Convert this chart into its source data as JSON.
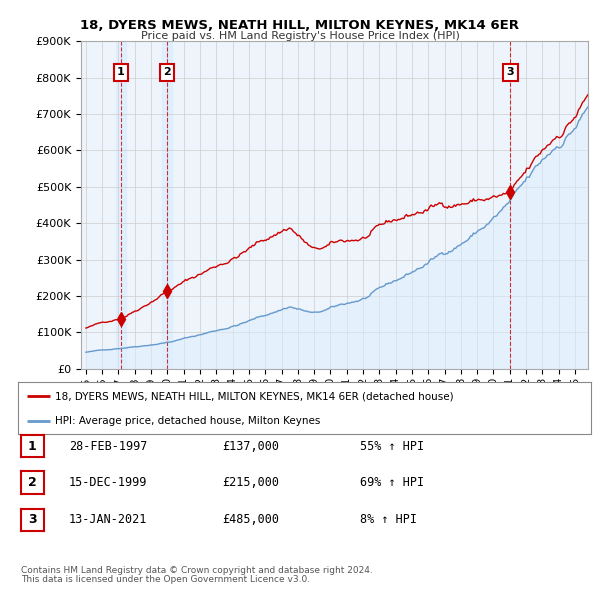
{
  "title": "18, DYERS MEWS, NEATH HILL, MILTON KEYNES, MK14 6ER",
  "subtitle": "Price paid vs. HM Land Registry's House Price Index (HPI)",
  "ylim": [
    0,
    900000
  ],
  "yticks": [
    0,
    100000,
    200000,
    300000,
    400000,
    500000,
    600000,
    700000,
    800000,
    900000
  ],
  "ytick_labels": [
    "£0",
    "£100K",
    "£200K",
    "£300K",
    "£400K",
    "£500K",
    "£600K",
    "£700K",
    "£800K",
    "£900K"
  ],
  "sales": [
    {
      "date_num": 1997.15,
      "price": 137000,
      "label": "1"
    },
    {
      "date_num": 1999.96,
      "price": 215000,
      "label": "2"
    },
    {
      "date_num": 2021.04,
      "price": 485000,
      "label": "3"
    }
  ],
  "sale_color": "#cc0000",
  "hpi_color": "#6699cc",
  "hpi_bg_color": "#ddeeff",
  "legend_sale_label": "18, DYERS MEWS, NEATH HILL, MILTON KEYNES, MK14 6ER (detached house)",
  "legend_hpi_label": "HPI: Average price, detached house, Milton Keynes",
  "table_rows": [
    {
      "num": "1",
      "date": "28-FEB-1997",
      "price": "£137,000",
      "change": "55% ↑ HPI"
    },
    {
      "num": "2",
      "date": "15-DEC-1999",
      "price": "£215,000",
      "change": "69% ↑ HPI"
    },
    {
      "num": "3",
      "date": "13-JAN-2021",
      "price": "£485,000",
      "change": "8% ↑ HPI"
    }
  ],
  "footnote1": "Contains HM Land Registry data © Crown copyright and database right 2024.",
  "footnote2": "This data is licensed under the Open Government Licence v3.0.",
  "background_color": "#ffffff",
  "grid_color": "#cccccc",
  "xlim_start": 1994.7,
  "xlim_end": 2025.8
}
